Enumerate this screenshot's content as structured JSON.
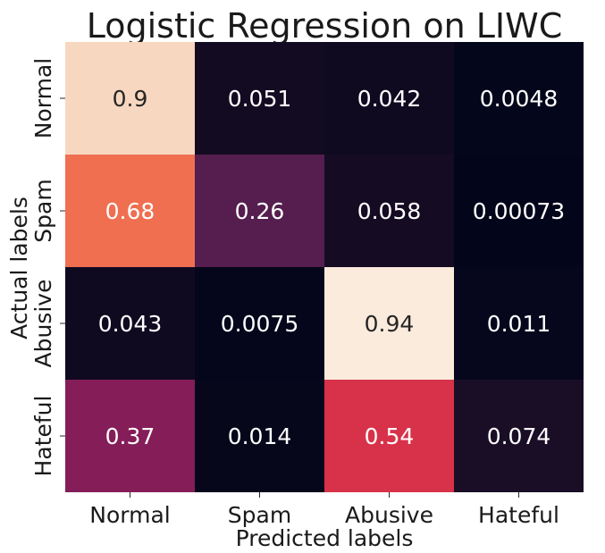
{
  "chart_data": {
    "type": "heatmap",
    "title": "Logistic Regression on LIWC",
    "xlabel": "Predicted labels",
    "ylabel": "Actual labels",
    "x_categories": [
      "Normal",
      "Spam",
      "Abusive",
      "Hateful"
    ],
    "y_categories": [
      "Normal",
      "Spam",
      "Abusive",
      "Hateful"
    ],
    "values": [
      [
        0.9,
        0.051,
        0.042,
        0.0048
      ],
      [
        0.68,
        0.26,
        0.058,
        0.00073
      ],
      [
        0.043,
        0.0075,
        0.94,
        0.011
      ],
      [
        0.37,
        0.014,
        0.54,
        0.074
      ]
    ],
    "value_labels": [
      [
        "0.9",
        "0.051",
        "0.042",
        "0.0048"
      ],
      [
        "0.68",
        "0.26",
        "0.058",
        "0.00073"
      ],
      [
        "0.043",
        "0.0075",
        "0.94",
        "0.011"
      ],
      [
        "0.37",
        "0.014",
        "0.54",
        "0.074"
      ]
    ],
    "colormap": "rocket",
    "grid": false,
    "colorbar": false
  }
}
